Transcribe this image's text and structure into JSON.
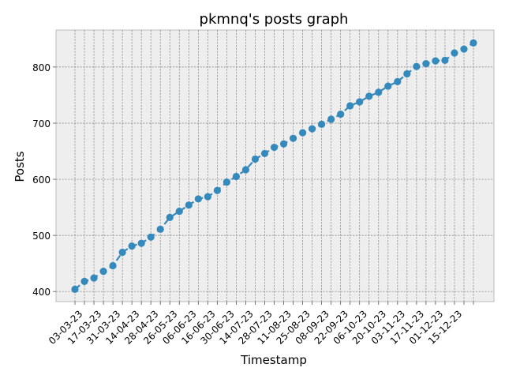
{
  "chart_data": {
    "type": "line",
    "title": "pkmnq's posts graph",
    "xlabel": "Timestamp",
    "ylabel": "Posts",
    "x_tick_labels": [
      "03-03-23",
      "17-03-23",
      "31-03-23",
      "14-04-23",
      "28-04-23",
      "26-05-23",
      "06-06-23",
      "16-06-23",
      "30-06-23",
      "14-07-23",
      "28-07-23",
      "11-08-23",
      "25-08-23",
      "08-09-23",
      "22-09-23",
      "06-10-23",
      "20-10-23",
      "03-11-23",
      "17-11-23",
      "01-12-23",
      "15-12-23"
    ],
    "y_ticks": [
      400,
      500,
      600,
      700,
      800
    ],
    "ylim": [
      382,
      866
    ],
    "grid": true,
    "series": [
      {
        "color": "#348abd",
        "values": [
          404,
          418,
          424,
          436,
          446,
          470,
          481,
          486,
          497,
          511,
          532,
          543,
          554,
          565,
          569,
          580,
          595,
          605,
          617,
          636,
          646,
          657,
          663,
          673,
          683,
          690,
          698,
          707,
          716,
          731,
          738,
          748,
          755,
          766,
          774,
          788,
          801,
          806,
          811,
          812,
          825,
          832,
          843
        ]
      }
    ]
  }
}
